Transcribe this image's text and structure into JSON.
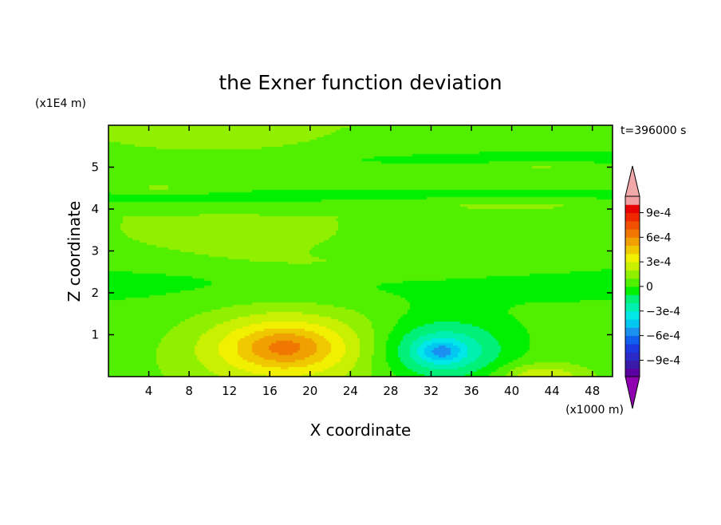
{
  "chart_data": {
    "type": "heatmap",
    "title": "the Exner function deviation",
    "xlabel": "X coordinate",
    "ylabel": "Z coordinate",
    "x_unit": "(x1000 m)",
    "y_unit": "(x1E4 m)",
    "time_label": "t=396000 s",
    "xlim": [
      0,
      50
    ],
    "ylim": [
      0,
      0.6
    ],
    "x_ticks": [
      4,
      8,
      12,
      16,
      20,
      24,
      28,
      32,
      36,
      40,
      44,
      48
    ],
    "y_ticks": [
      {
        "value": 0.1,
        "label": "1"
      },
      {
        "value": 0.2,
        "label": "2"
      },
      {
        "value": 0.3,
        "label": "3"
      },
      {
        "value": 0.4,
        "label": "4"
      },
      {
        "value": 0.5,
        "label": "5"
      }
    ],
    "colorbar": {
      "levels": [
        -0.0011,
        -0.001,
        -0.0009,
        -0.0008,
        -0.0007,
        -0.0006,
        -0.0005,
        -0.0004,
        -0.0003,
        -0.0002,
        -0.0001,
        0,
        0.0001,
        0.0002,
        0.0003,
        0.0004,
        0.0005,
        0.0006,
        0.0007,
        0.0008,
        0.0009,
        0.001,
        0.0011
      ],
      "colors": [
        "#5a00a0",
        "#3a1aa8",
        "#2a2ac8",
        "#1a3ae0",
        "#1060f0",
        "#1a90f0",
        "#00c8f0",
        "#00e8e8",
        "#00f0b0",
        "#00f078",
        "#00f000",
        "#50f000",
        "#90f000",
        "#c8f000",
        "#f0f000",
        "#f0c800",
        "#f0a000",
        "#f07800",
        "#f05000",
        "#f02800",
        "#e80000",
        "#f0a0a0"
      ],
      "under_color": "#9000b0",
      "over_color": "#f0a8a8",
      "tick_labels": [
        {
          "value": 0.0009,
          "label": "9e-4"
        },
        {
          "value": 0.0006,
          "label": "6e-4"
        },
        {
          "value": 0.0003,
          "label": "3e-4"
        },
        {
          "value": 0,
          "label": "0"
        },
        {
          "value": -0.0003,
          "label": "−3e-4"
        },
        {
          "value": -0.0006,
          "label": "−6e-4"
        },
        {
          "value": -0.0009,
          "label": "−9e-4"
        }
      ]
    },
    "field_anomalies": [
      {
        "x": 17.5,
        "z": 0.07,
        "sx": 9,
        "sz": 0.09,
        "amp": 0.00042
      },
      {
        "x": 17.5,
        "z": 0.07,
        "sx": 4,
        "sz": 0.04,
        "amp": 0.00018
      },
      {
        "x": 33,
        "z": 0.06,
        "sx": 6,
        "sz": 0.07,
        "amp": -0.00038
      },
      {
        "x": 33,
        "z": 0.06,
        "sx": 2,
        "sz": 0.025,
        "amp": -0.00025
      },
      {
        "x": 43,
        "z": 0.0,
        "sx": 4,
        "sz": 0.03,
        "amp": 0.00025
      },
      {
        "x": 25,
        "z": 0.265,
        "sx": 22,
        "sz": 0.035,
        "amp": 0.0001
      },
      {
        "x": 12,
        "z": 0.33,
        "sx": 12,
        "sz": 0.05,
        "amp": 0.00012
      },
      {
        "x": 40,
        "z": 0.41,
        "sx": 12,
        "sz": 0.015,
        "amp": 0.0001
      },
      {
        "x": 5,
        "z": 0.45,
        "sx": 6,
        "sz": 0.012,
        "amp": 0.0001
      },
      {
        "x": 43,
        "z": 0.5,
        "sx": 5,
        "sz": 0.01,
        "amp": 0.0001
      },
      {
        "x": 10,
        "z": 0.56,
        "sx": 14,
        "sz": 0.05,
        "amp": 0.00011
      }
    ],
    "field_base": [
      {
        "z": 0.0,
        "value": 6e-05
      },
      {
        "z": 0.15,
        "value": 2e-05
      },
      {
        "z": 0.24,
        "value": -4e-05
      },
      {
        "z": 0.3,
        "value": 1e-05
      },
      {
        "z": 0.38,
        "value": 8e-05
      },
      {
        "z": 0.43,
        "value": -3e-05
      },
      {
        "z": 0.47,
        "value": 4e-05
      },
      {
        "z": 0.52,
        "value": -2e-05
      },
      {
        "z": 0.6,
        "value": 8e-05
      }
    ]
  }
}
